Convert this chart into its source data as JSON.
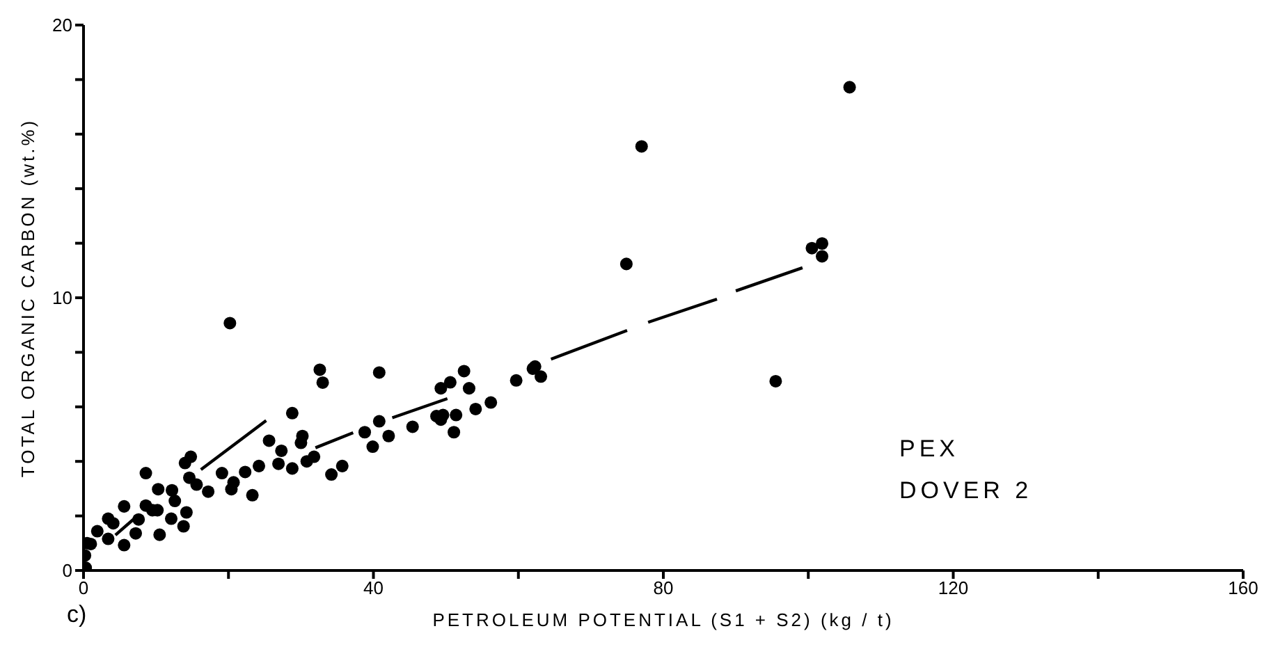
{
  "chart_data": {
    "type": "scatter",
    "xlabel": "PETROLEUM POTENTIAL (S1 + S2) (kg / t)",
    "ylabel": "TOTAL ORGANIC CARBON (wt.%)",
    "annotations": [
      "PEX",
      "DOVER 2",
      "c)"
    ],
    "xlim": [
      0,
      160
    ],
    "ylim": [
      0,
      20
    ],
    "xticks": [
      0,
      {
        "value": 20,
        "label": null
      },
      40,
      {
        "value": 60,
        "label": null
      },
      80,
      {
        "value": 100,
        "label": null
      },
      120,
      {
        "value": 140,
        "label": null
      },
      160
    ],
    "yticks": [
      0,
      {
        "value": 2,
        "label": null
      },
      {
        "value": 4,
        "label": null
      },
      {
        "value": 6,
        "label": null
      },
      {
        "value": 8,
        "label": null
      },
      10,
      {
        "value": 12,
        "label": null
      },
      {
        "value": 14,
        "label": null
      },
      {
        "value": 16,
        "label": null
      },
      {
        "value": 18,
        "label": null
      },
      20
    ],
    "grid": false,
    "series": [
      {
        "color": "#000000",
        "marker": "circle",
        "x": [
          20.2,
          32.6,
          33.0,
          28.8,
          25.6,
          30.2,
          30.0,
          27.3,
          26.9,
          28.8,
          30.8,
          31.8,
          34.2,
          24.2,
          22.3,
          23.3,
          20.7,
          19.1,
          20.4,
          17.2,
          14.0,
          14.8,
          14.6,
          15.6,
          8.6,
          10.3,
          12.2,
          12.6,
          12.1,
          14.2,
          13.8,
          8.6,
          9.5,
          10.2,
          10.5,
          7.6,
          7.2,
          5.6,
          5.6,
          3.4,
          4.1,
          3.4,
          1.9,
          1.0,
          0.5,
          0.2,
          0.3,
          40.8,
          35.7,
          38.8,
          39.9,
          40.8,
          42.1,
          45.4,
          48.7,
          49.3,
          49.6,
          51.1,
          51.4,
          54.1,
          56.2,
          49.3,
          50.6,
          52.5,
          53.2,
          59.7,
          62.0,
          62.3,
          63.1,
          105.7,
          77.0,
          74.9,
          100.5,
          101.9,
          101.9,
          95.5
        ],
        "values": [
          9.07,
          7.36,
          6.89,
          5.77,
          4.76,
          4.93,
          4.68,
          4.39,
          3.91,
          3.74,
          4.0,
          4.17,
          3.52,
          3.83,
          3.61,
          2.76,
          3.23,
          3.57,
          2.98,
          2.89,
          3.94,
          4.17,
          3.4,
          3.15,
          3.57,
          2.98,
          2.94,
          2.55,
          1.9,
          2.13,
          1.62,
          2.38,
          2.21,
          2.21,
          1.31,
          1.87,
          1.36,
          2.35,
          0.93,
          1.9,
          1.73,
          1.16,
          1.44,
          0.97,
          1.0,
          0.55,
          0.1,
          7.26,
          3.83,
          5.07,
          4.54,
          5.47,
          4.93,
          5.27,
          5.66,
          5.53,
          5.7,
          5.07,
          5.7,
          5.92,
          6.16,
          6.68,
          6.9,
          7.31,
          6.68,
          6.97,
          7.4,
          7.48,
          7.11,
          17.72,
          15.55,
          11.24,
          11.82,
          11.99,
          11.52,
          6.94
        ]
      },
      {
        "type": "line",
        "color": "#000000",
        "x": [
          4.4,
          7,
          11.6,
          16.2,
          25.2,
          28.6,
          32,
          37.2,
          39.9,
          42.6,
          50.2,
          57.4,
          64.5,
          75,
          76.5,
          77.9,
          87.4,
          88.7,
          90,
          99.2
        ],
        "values": [
          1.3,
          1.9,
          null,
          3.7,
          5.5,
          null,
          4.5,
          5.05,
          null,
          5.6,
          6.3,
          null,
          7.75,
          8.8,
          null,
          9.1,
          9.95,
          null,
          10.25,
          11.1
        ]
      }
    ]
  }
}
